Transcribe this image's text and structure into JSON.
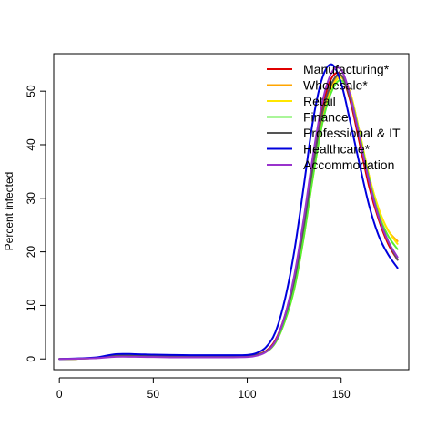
{
  "chart_data": {
    "type": "line",
    "title": "",
    "xlabel": "",
    "ylabel": "Percent infected",
    "xlim": [
      -3,
      186
    ],
    "ylim": [
      -2,
      57
    ],
    "xticks": [
      0,
      50,
      100,
      150
    ],
    "yticks": [
      0,
      10,
      20,
      30,
      40,
      50
    ],
    "grid": false,
    "legend_position": "top-right",
    "x": [
      0,
      10,
      20,
      30,
      40,
      50,
      60,
      70,
      80,
      90,
      100,
      105,
      110,
      115,
      120,
      125,
      130,
      135,
      140,
      145,
      150,
      155,
      160,
      165,
      170,
      175,
      180
    ],
    "series": [
      {
        "name": "Manufacturing*",
        "color": "#e00000",
        "values": [
          0,
          0.05,
          0.2,
          0.6,
          0.6,
          0.55,
          0.5,
          0.5,
          0.5,
          0.5,
          0.55,
          0.8,
          1.5,
          3.5,
          8,
          15,
          25,
          37,
          47,
          52.5,
          53,
          48,
          40,
          32,
          26,
          21.5,
          18.5
        ]
      },
      {
        "name": "Wholesale*",
        "color": "#ffa500",
        "values": [
          0,
          0.05,
          0.2,
          0.6,
          0.6,
          0.55,
          0.5,
          0.5,
          0.5,
          0.5,
          0.55,
          0.75,
          1.4,
          3.2,
          7.5,
          14,
          24,
          35,
          45,
          51,
          53,
          49.5,
          42,
          34,
          28,
          24,
          22
        ]
      },
      {
        "name": "Retail",
        "color": "#ffe600",
        "values": [
          0,
          0.05,
          0.2,
          0.6,
          0.6,
          0.55,
          0.5,
          0.5,
          0.5,
          0.5,
          0.55,
          0.7,
          1.3,
          3,
          7,
          13,
          22.5,
          34,
          44,
          50.5,
          52.5,
          49.5,
          42,
          34,
          28,
          24,
          21.5
        ]
      },
      {
        "name": "Finance",
        "color": "#55ee33",
        "values": [
          0,
          0.05,
          0.2,
          0.6,
          0.6,
          0.55,
          0.5,
          0.5,
          0.5,
          0.5,
          0.55,
          0.7,
          1.3,
          3,
          7,
          13,
          22.5,
          34,
          44,
          50,
          52,
          49,
          41.5,
          33.5,
          27,
          23,
          20.5
        ]
      },
      {
        "name": "Professional & IT",
        "color": "#555555",
        "values": [
          0,
          0.05,
          0.2,
          0.6,
          0.6,
          0.55,
          0.5,
          0.5,
          0.5,
          0.5,
          0.55,
          0.75,
          1.4,
          3.3,
          7.8,
          14.5,
          24.5,
          36,
          46,
          51.5,
          53,
          48.5,
          41,
          33,
          26.5,
          22,
          18.5
        ]
      },
      {
        "name": "Healthcare*",
        "color": "#0000dd",
        "values": [
          0,
          0.1,
          0.3,
          0.9,
          0.9,
          0.8,
          0.75,
          0.7,
          0.7,
          0.7,
          0.75,
          1.1,
          2.2,
          5,
          11,
          20,
          32,
          44.5,
          52.5,
          55,
          51.5,
          44,
          36,
          28.5,
          23,
          19.5,
          17
        ]
      },
      {
        "name": "Accommodation",
        "color": "#9933cc",
        "values": [
          0,
          0.05,
          0.15,
          0.4,
          0.4,
          0.35,
          0.3,
          0.3,
          0.3,
          0.3,
          0.35,
          0.6,
          1.3,
          3.3,
          8,
          15.5,
          26,
          38,
          48,
          53.5,
          54,
          49,
          41,
          33,
          26.5,
          22,
          19
        ]
      }
    ]
  }
}
